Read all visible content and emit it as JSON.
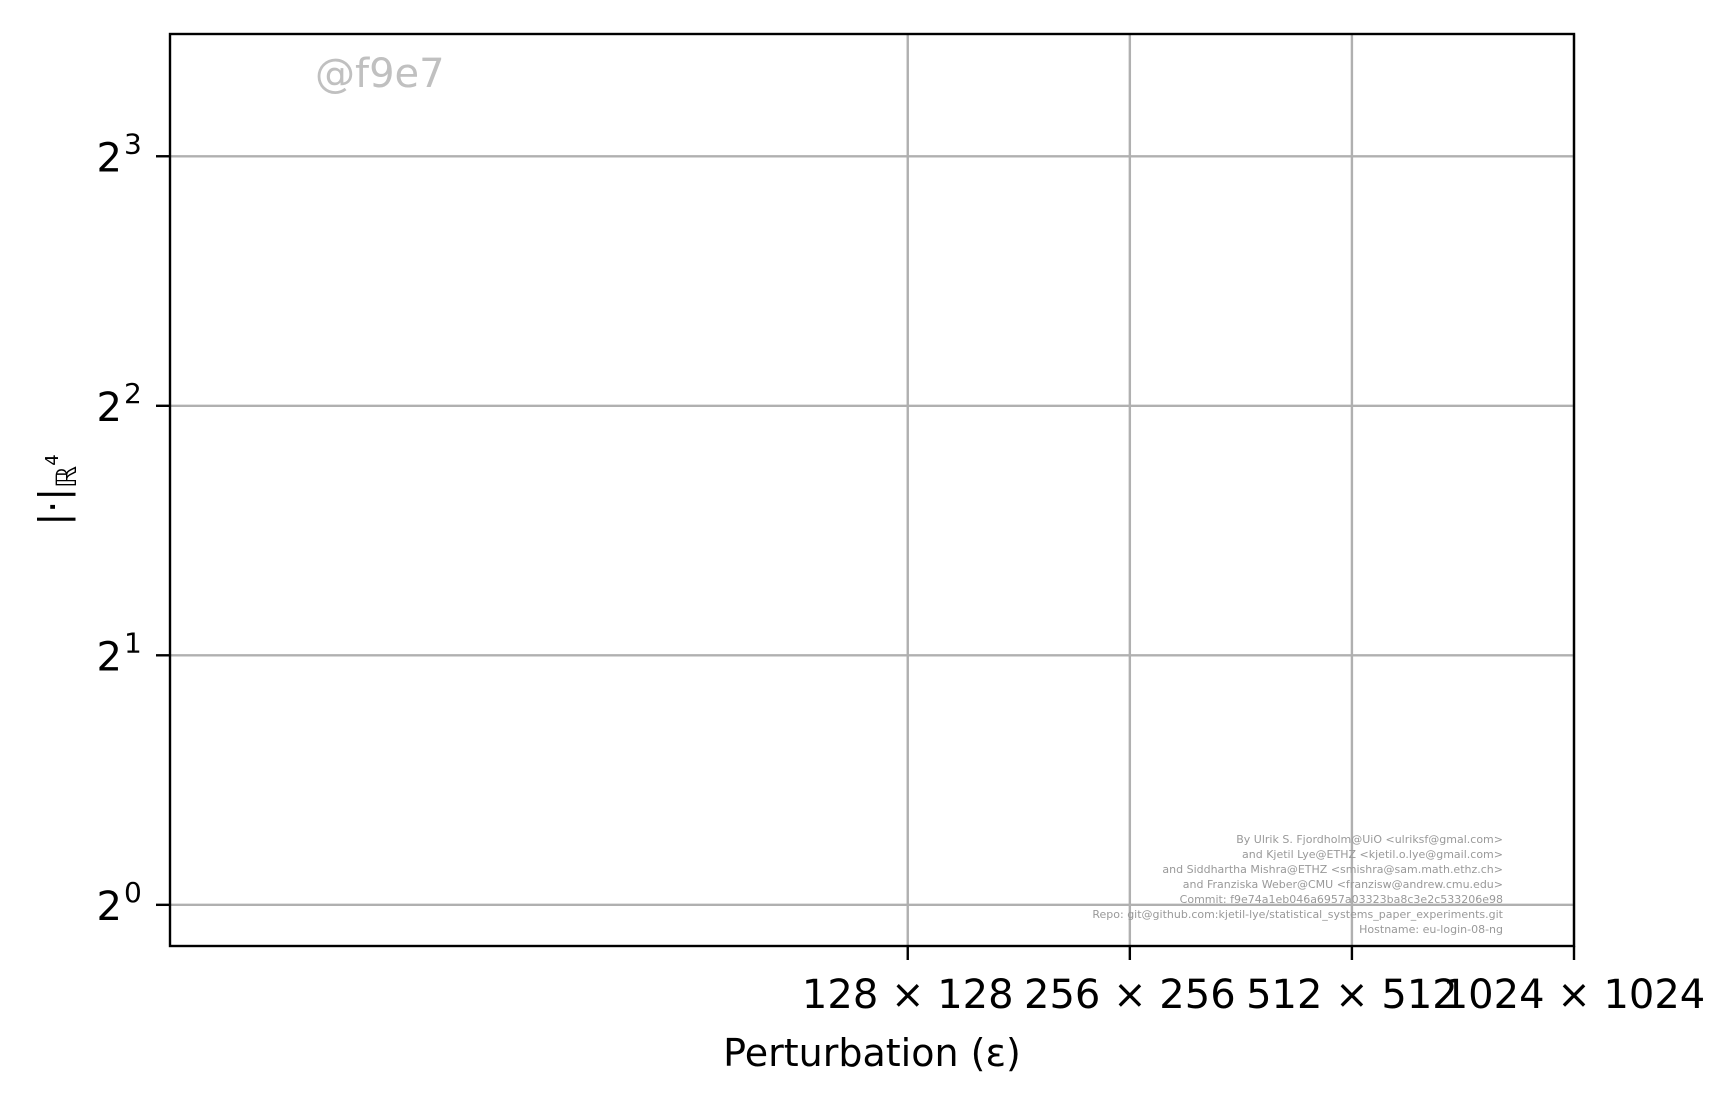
{
  "chart_data": {
    "type": "line",
    "title": "",
    "xlabel": "Perturbation (ε)",
    "ylabel": "|·|",
    "ylabel_subscript": "ℝ",
    "ylabel_subscript_power": "4",
    "x_scale": "log2",
    "y_scale": "log2",
    "grid": true,
    "x_tick_labels": [
      "128 × 128",
      "256 × 256",
      "512 × 512",
      "1024 × 1024"
    ],
    "x_tick_values": [
      128,
      256,
      512,
      1024
    ],
    "y_tick_base": "2",
    "y_tick_exponents": [
      "0",
      "1",
      "2",
      "3"
    ],
    "series": [],
    "watermark": "@f9e7",
    "credits": [
      "By Ulrik S. Fjordholm@UiO <ulriksf@gmal.com>",
      "and Kjetil Lye@ETHZ <kjetil.o.lye@gmail.com>",
      "and Siddhartha Mishra@ETHZ <smishra@sam.math.ethz.ch>",
      "and Franziska Weber@CMU <franzisw@andrew.cmu.edu>",
      "Commit: f9e74a1eb046a6957a03323ba8c3e2c533206e98",
      "Repo: git@github.com:kjetil-lye/statistical_systems_paper_experiments.git",
      "Hostname: eu-login-08-ng"
    ],
    "colors": {
      "grid": "#b0b0b0",
      "axes": "#000000",
      "credits": "#999999",
      "watermark": "#c0c0c0"
    }
  }
}
